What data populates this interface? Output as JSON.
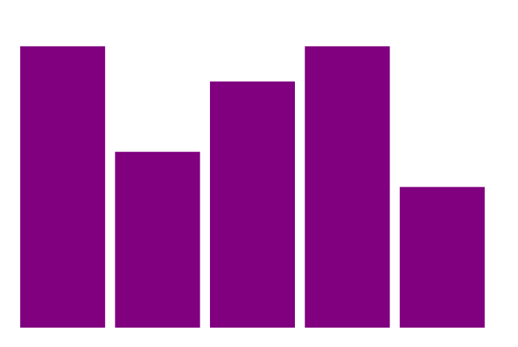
{
  "chart_data": {
    "type": "bar",
    "categories": [
      null,
      null,
      null,
      null,
      null
    ],
    "values": [
      8,
      5,
      7,
      8,
      4
    ],
    "color": "#800080",
    "ylim": [
      0,
      8
    ]
  }
}
